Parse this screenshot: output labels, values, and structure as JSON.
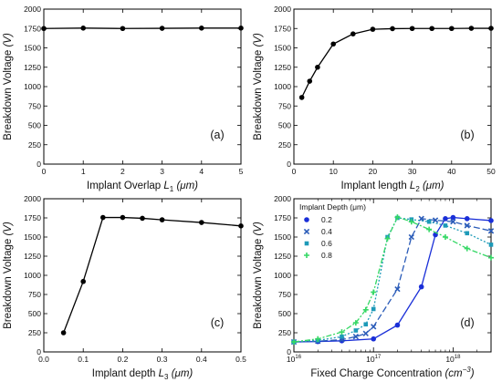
{
  "chart_data": [
    {
      "id": "a",
      "type": "line",
      "panel_label": "(a)",
      "xlabel": {
        "text": "Implant Overlap ",
        "var": "L",
        "sub": "1",
        "unit": " (μm)"
      },
      "ylabel": {
        "text": "Breakdown Voltage ",
        "unit": "(V)"
      },
      "xlim": [
        0,
        5
      ],
      "ylim": [
        0,
        2000
      ],
      "xticks": [
        "0",
        "1",
        "2",
        "3",
        "4",
        "5"
      ],
      "yticks": [
        "0",
        "250",
        "500",
        "750",
        "1000",
        "1250",
        "1500",
        "1750",
        "2000"
      ],
      "x": [
        0,
        1,
        2,
        3,
        4,
        5
      ],
      "y": [
        1750,
        1755,
        1750,
        1752,
        1755,
        1755
      ],
      "color": "#000000"
    },
    {
      "id": "b",
      "type": "line",
      "panel_label": "(b)",
      "xlabel": {
        "text": "Implant length ",
        "var": "L",
        "sub": "2",
        "unit": " (μm)"
      },
      "ylabel": {
        "text": "Breakdown Voltage ",
        "unit": "(V)"
      },
      "xlim": [
        0,
        50
      ],
      "ylim": [
        0,
        2000
      ],
      "xticks": [
        "0",
        "10",
        "20",
        "30",
        "40",
        "50"
      ],
      "yticks": [
        "0",
        "250",
        "500",
        "750",
        "1000",
        "1250",
        "1500",
        "1750",
        "2000"
      ],
      "x": [
        2,
        4,
        6,
        10,
        15,
        20,
        25,
        30,
        35,
        40,
        45,
        50
      ],
      "y": [
        860,
        1070,
        1250,
        1550,
        1680,
        1740,
        1748,
        1750,
        1750,
        1750,
        1752,
        1752
      ],
      "color": "#000000"
    },
    {
      "id": "c",
      "type": "line",
      "panel_label": "(c)",
      "xlabel": {
        "text": "Implant depth ",
        "var": "L",
        "sub": "3",
        "unit": " (μm)"
      },
      "ylabel": {
        "text": "Breakdown Voltage ",
        "unit": "(V)"
      },
      "xlim": [
        0.0,
        0.5
      ],
      "ylim": [
        0,
        2000
      ],
      "xticks": [
        "0.0",
        "0.1",
        "0.2",
        "0.3",
        "0.4",
        "0.5"
      ],
      "yticks": [
        "0",
        "250",
        "500",
        "750",
        "1000",
        "1250",
        "1500",
        "1750",
        "2000"
      ],
      "x": [
        0.05,
        0.1,
        0.15,
        0.2,
        0.25,
        0.3,
        0.4,
        0.5
      ],
      "y": [
        250,
        920,
        1755,
        1755,
        1745,
        1725,
        1690,
        1645
      ],
      "color": "#000000"
    },
    {
      "id": "d",
      "type": "line",
      "panel_label": "(d)",
      "xlabel": {
        "text": "Fixed Charge Concentration ",
        "unit": "(cm",
        "sup": "−3",
        "close": ")"
      },
      "ylabel": {
        "text": "Breakdown Voltage ",
        "unit": "(V)"
      },
      "xscale": "log",
      "xlim": [
        1e+16,
        3e+18
      ],
      "ylim": [
        0,
        2000
      ],
      "xticks": [
        {
          "value": 1e+16,
          "base": "10",
          "exp": "16"
        },
        {
          "value": 1e+17,
          "base": "10",
          "exp": "17"
        },
        {
          "value": 1e+18,
          "base": "10",
          "exp": "18"
        }
      ],
      "yticks": [
        "0",
        "250",
        "500",
        "750",
        "1000",
        "1250",
        "1500",
        "1750",
        "2000"
      ],
      "legend": {
        "title": "Implant Depth (μm)",
        "placement": "top-left"
      },
      "series": [
        {
          "name": "0.2",
          "color": "#1a2fd8",
          "marker": "circle",
          "dash": "",
          "x": [
            1e+16,
            2e+16,
            4e+16,
            1e+17,
            2e+17,
            4e+17,
            6e+17,
            8e+17,
            1e+18,
            1.5e+18,
            3e+18
          ],
          "y": [
            130,
            135,
            145,
            170,
            350,
            850,
            1530,
            1740,
            1755,
            1740,
            1715
          ]
        },
        {
          "name": "0.4",
          "color": "#2a5bb8",
          "marker": "x",
          "dash": "7,3",
          "x": [
            1e+16,
            2e+16,
            4e+16,
            6e+16,
            8e+16,
            1e+17,
            2e+17,
            3e+17,
            4e+17,
            6e+17,
            1e+18,
            1.5e+18,
            3e+18
          ],
          "y": [
            130,
            140,
            160,
            200,
            240,
            330,
            820,
            1500,
            1740,
            1720,
            1700,
            1650,
            1580
          ]
        },
        {
          "name": "0.6",
          "color": "#1d9ab8",
          "marker": "square",
          "dash": "2,2",
          "x": [
            1e+16,
            2e+16,
            4e+16,
            6e+16,
            8e+16,
            1e+17,
            1.5e+17,
            2e+17,
            3e+17,
            5e+17,
            8e+17,
            1.5e+18,
            3e+18
          ],
          "y": [
            130,
            150,
            200,
            280,
            360,
            560,
            1500,
            1750,
            1730,
            1700,
            1650,
            1550,
            1400
          ]
        },
        {
          "name": "0.8",
          "color": "#35d865",
          "marker": "plus",
          "dash": "6,2,2,2",
          "x": [
            1e+16,
            2e+16,
            4e+16,
            6e+16,
            8e+16,
            1e+17,
            1.5e+17,
            2e+17,
            3e+17,
            5e+17,
            8e+17,
            1.5e+18,
            3e+18
          ],
          "y": [
            130,
            170,
            260,
            380,
            550,
            780,
            1480,
            1760,
            1700,
            1600,
            1500,
            1350,
            1230
          ]
        }
      ]
    }
  ]
}
